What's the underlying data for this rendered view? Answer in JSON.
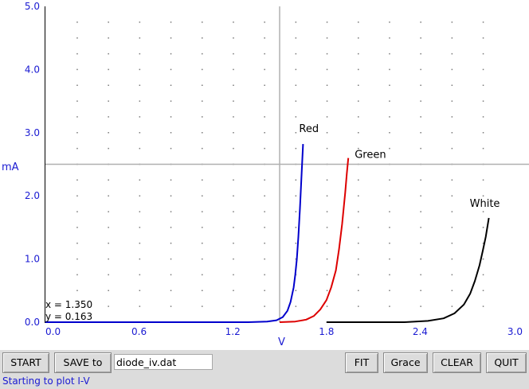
{
  "chart_data": {
    "type": "line",
    "xlabel": "V",
    "ylabel": "mA",
    "xlim": [
      0.0,
      3.0
    ],
    "ylim": [
      0.0,
      5.0
    ],
    "x_ticks": [
      "0.0",
      "0.6",
      "1.2",
      "1.8",
      "2.4",
      "3.0"
    ],
    "y_ticks": [
      "0.0",
      "1.0",
      "2.0",
      "3.0",
      "4.0",
      "5.0"
    ],
    "grid": "dotted",
    "crosshair": {
      "x": 1.5,
      "y": 2.5
    },
    "readout": {
      "x_text": "x = 1.350",
      "y_text": "y = 0.163"
    },
    "series": [
      {
        "name": "Red",
        "color": "#0000cc",
        "points": [
          [
            0.0,
            0.0
          ],
          [
            1.3,
            0.0
          ],
          [
            1.42,
            0.01
          ],
          [
            1.48,
            0.03
          ],
          [
            1.52,
            0.08
          ],
          [
            1.55,
            0.18
          ],
          [
            1.57,
            0.32
          ],
          [
            1.59,
            0.55
          ],
          [
            1.6,
            0.75
          ],
          [
            1.61,
            1.0
          ],
          [
            1.62,
            1.35
          ],
          [
            1.63,
            1.8
          ],
          [
            1.64,
            2.3
          ],
          [
            1.65,
            2.82
          ]
        ]
      },
      {
        "name": "Green",
        "color": "#dd0000",
        "points": [
          [
            1.5,
            0.0
          ],
          [
            1.6,
            0.01
          ],
          [
            1.67,
            0.04
          ],
          [
            1.72,
            0.1
          ],
          [
            1.76,
            0.2
          ],
          [
            1.8,
            0.35
          ],
          [
            1.83,
            0.55
          ],
          [
            1.86,
            0.82
          ],
          [
            1.88,
            1.15
          ],
          [
            1.9,
            1.55
          ],
          [
            1.92,
            2.05
          ],
          [
            1.93,
            2.35
          ],
          [
            1.94,
            2.6
          ]
        ]
      },
      {
        "name": "White",
        "color": "#000000",
        "points": [
          [
            1.8,
            0.0
          ],
          [
            2.3,
            0.0
          ],
          [
            2.45,
            0.02
          ],
          [
            2.55,
            0.06
          ],
          [
            2.62,
            0.14
          ],
          [
            2.68,
            0.28
          ],
          [
            2.72,
            0.45
          ],
          [
            2.75,
            0.65
          ],
          [
            2.78,
            0.9
          ],
          [
            2.8,
            1.12
          ],
          [
            2.82,
            1.35
          ],
          [
            2.84,
            1.65
          ]
        ]
      }
    ]
  },
  "toolbar": {
    "start_label": "START",
    "save_label": "SAVE to",
    "filename": "diode_iv.dat",
    "fit_label": "FIT",
    "grace_label": "Grace",
    "clear_label": "CLEAR",
    "quit_label": "QUIT"
  },
  "status_text": "Starting to plot I-V"
}
